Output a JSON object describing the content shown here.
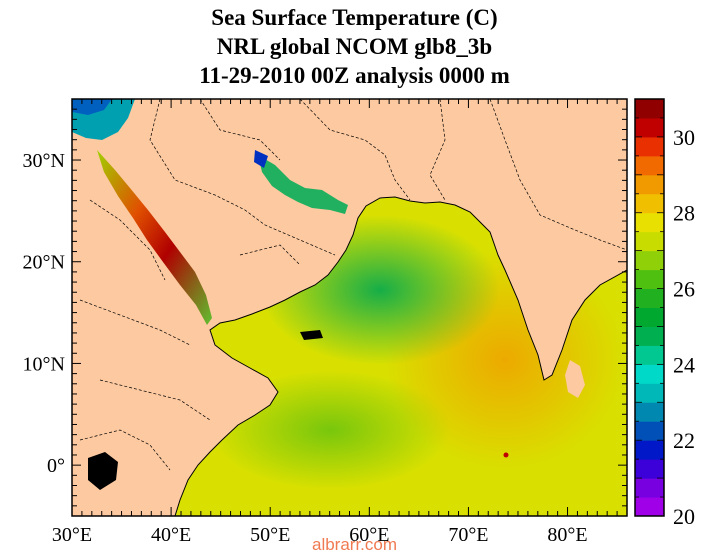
{
  "title": {
    "line1": "Sea Surface Temperature (C)",
    "line2": "NRL global NCOM glb8_3b",
    "line3": "11-29-2010 00Z analysis   0000 m"
  },
  "map": {
    "lon_range": [
      30,
      86
    ],
    "lat_range": [
      -5,
      36
    ],
    "lon_ticks": [
      {
        "value": 30,
        "label": "30°E"
      },
      {
        "value": 40,
        "label": "40°E"
      },
      {
        "value": 50,
        "label": "50°E"
      },
      {
        "value": 60,
        "label": "60°E"
      },
      {
        "value": 70,
        "label": "70°E"
      },
      {
        "value": 80,
        "label": "80°E"
      }
    ],
    "lat_ticks": [
      {
        "value": 0,
        "label": "0°"
      },
      {
        "value": 10,
        "label": "10°N"
      },
      {
        "value": 20,
        "label": "20°N"
      },
      {
        "value": 30,
        "label": "30°N"
      }
    ],
    "land_color": "#fdc9a0",
    "water_color": "#d9e000"
  },
  "colorbar": {
    "range": [
      20,
      31
    ],
    "tick_labels": [
      "20",
      "22",
      "24",
      "26",
      "28",
      "30"
    ],
    "colors": [
      "#a000e8",
      "#7800e0",
      "#3c00d8",
      "#0018c8",
      "#0050b8",
      "#0088b0",
      "#00b8b8",
      "#00d8c8",
      "#00c890",
      "#00b050",
      "#00a830",
      "#20b020",
      "#50c010",
      "#90d008",
      "#c8dc00",
      "#e8e000",
      "#f0c000",
      "#f09a00",
      "#f06a00",
      "#e83000",
      "#c00000",
      "#900000"
    ]
  },
  "watermark": "albrarr.com"
}
